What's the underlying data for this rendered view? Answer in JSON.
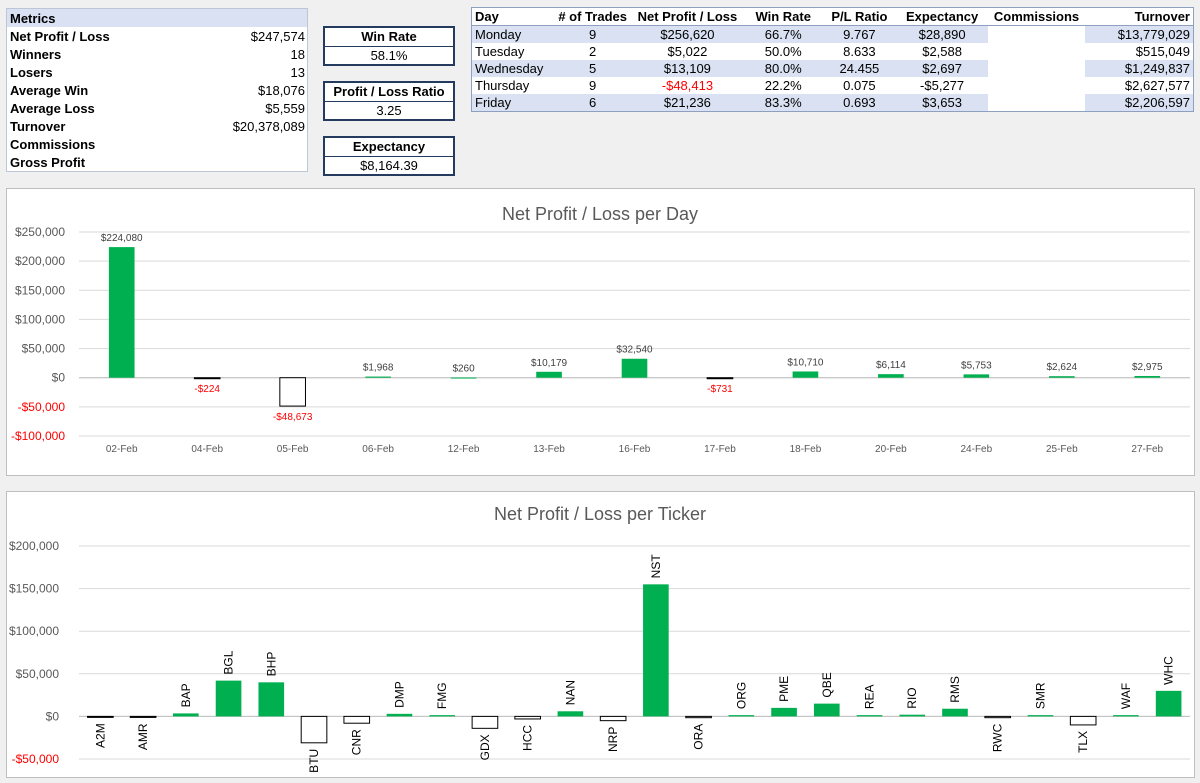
{
  "metrics": {
    "header": "Metrics",
    "rows": [
      {
        "label": "Net Profit / Loss",
        "value": "$247,574"
      },
      {
        "label": "Winners",
        "value": "18"
      },
      {
        "label": "Losers",
        "value": "13"
      },
      {
        "label": "Average Win",
        "value": "$18,076"
      },
      {
        "label": "Average Loss",
        "value": "$5,559"
      },
      {
        "label": "Turnover",
        "value": "$20,378,089"
      },
      {
        "label": "Commissions",
        "value": ""
      },
      {
        "label": "Gross Profit",
        "value": ""
      }
    ]
  },
  "kpis": {
    "win_rate": {
      "title": "Win Rate",
      "value": "58.1%"
    },
    "pl_ratio": {
      "title": "Profit / Loss Ratio",
      "value": "3.25"
    },
    "expectancy": {
      "title": "Expectancy",
      "value": "$8,164.39"
    }
  },
  "day_table": {
    "headers": [
      "Day",
      "# of Trades",
      "Net Profit / Loss",
      "Win Rate",
      "P/L Ratio",
      "Expectancy",
      "Commissions",
      "Turnover"
    ],
    "rows": [
      [
        "Monday",
        "9",
        "$256,620",
        "66.7%",
        "9.767",
        "$28,890",
        "",
        "$13,779,029"
      ],
      [
        "Tuesday",
        "2",
        "$5,022",
        "50.0%",
        "8.633",
        "$2,588",
        "",
        "$515,049"
      ],
      [
        "Wednesday",
        "5",
        "$13,109",
        "80.0%",
        "24.455",
        "$2,697",
        "",
        "$1,249,837"
      ],
      [
        "Thursday",
        "9",
        "-$48,413",
        "22.2%",
        "0.075",
        "-$5,277",
        "",
        "$2,627,577"
      ],
      [
        "Friday",
        "6",
        "$21,236",
        "83.3%",
        "0.693",
        "$3,653",
        "",
        "$2,206,597"
      ]
    ]
  },
  "colors": {
    "positive": "#00b050",
    "negative_fill": "#ffffff",
    "negative_text": "#ff0000",
    "header_band": "#d9e1f2"
  },
  "chart_data": [
    {
      "type": "bar",
      "title": "Net Profit / Loss per Day",
      "categories": [
        "02-Feb",
        "04-Feb",
        "05-Feb",
        "06-Feb",
        "12-Feb",
        "13-Feb",
        "16-Feb",
        "17-Feb",
        "18-Feb",
        "20-Feb",
        "24-Feb",
        "25-Feb",
        "27-Feb"
      ],
      "values": [
        224080,
        -224,
        -48673,
        1968,
        260,
        10179,
        32540,
        -731,
        10710,
        6114,
        5753,
        2624,
        2975
      ],
      "data_labels": [
        "$224,080",
        "-$224",
        "-$48,673",
        "$1,968",
        "$260",
        "$10,179",
        "$32,540",
        "-$731",
        "$10,710",
        "$6,114",
        "$5,753",
        "$2,624",
        "$2,975"
      ],
      "ylim": [
        -100000,
        250000
      ],
      "yticks": [
        250000,
        200000,
        150000,
        100000,
        50000,
        0,
        -50000,
        -100000
      ],
      "ytick_labels": [
        "$250,000",
        "$200,000",
        "$150,000",
        "$100,000",
        "$50,000",
        "$0",
        "-$50,000",
        "-$100,000"
      ],
      "grid": true
    },
    {
      "type": "bar",
      "title": "Net Profit / Loss per Ticker",
      "categories": [
        "A2M",
        "AMR",
        "BAP",
        "BGL",
        "BHP",
        "BTU",
        "CNR",
        "DMP",
        "FMG",
        "GDX",
        "HCC",
        "NAN",
        "NRP",
        "NST",
        "ORA",
        "ORG",
        "PME",
        "QBE",
        "REA",
        "RIO",
        "RMS",
        "RWC",
        "SMR",
        "TLX",
        "WAF",
        "WHC"
      ],
      "values": [
        -1000,
        -1200,
        3500,
        42000,
        40000,
        -31000,
        -8000,
        3000,
        1500,
        -14000,
        -3000,
        6000,
        -5000,
        155000,
        -1500,
        1500,
        10000,
        15000,
        1500,
        2000,
        9000,
        -1500,
        1500,
        -10000,
        1500,
        30000
      ],
      "ylim": [
        -50000,
        200000
      ],
      "yticks": [
        200000,
        150000,
        100000,
        50000,
        0,
        -50000
      ],
      "ytick_labels": [
        "$200,000",
        "$150,000",
        "$100,000",
        "$50,000",
        "$0",
        "-$50,000"
      ],
      "grid": true
    }
  ]
}
